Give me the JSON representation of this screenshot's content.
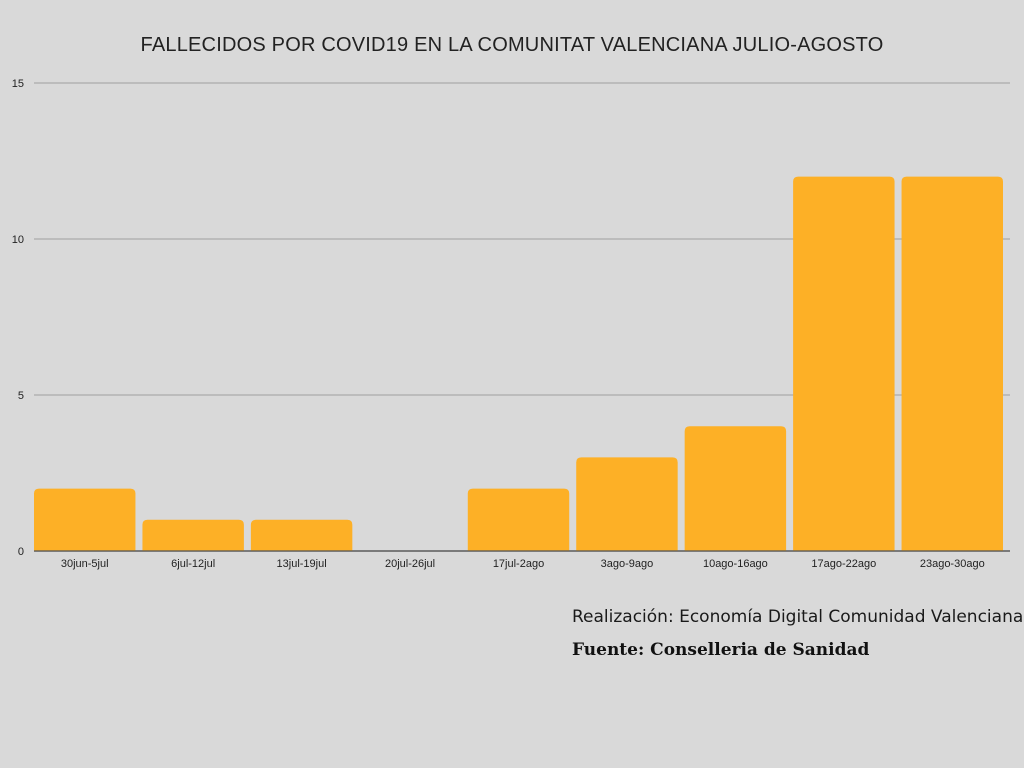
{
  "chart_data": {
    "type": "bar",
    "title": "FALLECIDOS POR COVID19 EN LA COMUNITAT VALENCIANA JULIO-AGOSTO",
    "categories": [
      "30jun-5jul",
      "6jul-12jul",
      "13jul-19jul",
      "20jul-26jul",
      "17jul-2ago",
      "3ago-9ago",
      "10ago-16ago",
      "17ago-22ago",
      "23ago-30ago"
    ],
    "values": [
      2,
      1,
      1,
      0,
      2,
      3,
      4,
      12,
      12
    ],
    "xlabel": "",
    "ylabel": "",
    "ylim": [
      0,
      15
    ],
    "yticks": [
      "0",
      "5",
      "10",
      "15"
    ],
    "grid": true,
    "bar_color": "#fdb026",
    "grid_color": "#9e9e9e"
  },
  "footer": {
    "credit": "Realización: Economía Digital Comunidad Valenciana",
    "source": "Fuente: Conselleria de Sanidad"
  }
}
